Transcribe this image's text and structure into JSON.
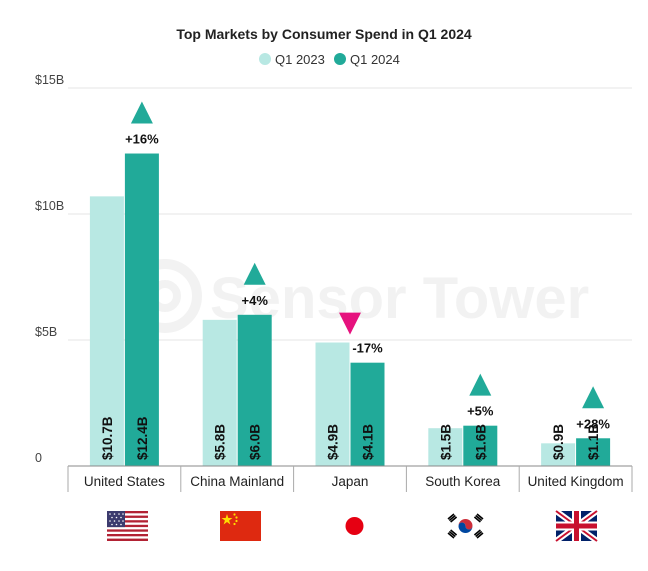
{
  "chart_data": {
    "type": "bar",
    "title": "Top Markets by Consumer Spend in Q1 2024",
    "watermark": "Sensor Tower",
    "categories": [
      "United States",
      "China Mainland",
      "Japan",
      "South Korea",
      "United Kingdom"
    ],
    "flags": [
      "us-flag-icon",
      "cn-flag-icon",
      "jp-flag-icon",
      "kr-flag-icon",
      "gb-flag-icon"
    ],
    "series": [
      {
        "name": "Q1 2023",
        "color": "#b8e8e3",
        "values": [
          10.7,
          5.8,
          4.9,
          1.5,
          0.9
        ],
        "labels": [
          "$10.7B",
          "$5.8B",
          "$4.9B",
          "$1.5B",
          "$0.9B"
        ]
      },
      {
        "name": "Q1 2024",
        "color": "#21aa99",
        "values": [
          12.4,
          6.0,
          4.1,
          1.6,
          1.1
        ],
        "labels": [
          "$12.4B",
          "$6.0B",
          "$4.1B",
          "$1.6B",
          "$1.1B"
        ]
      }
    ],
    "changes": [
      {
        "text": "+16%",
        "direction": "up"
      },
      {
        "text": "+4%",
        "direction": "up"
      },
      {
        "text": "-17%",
        "direction": "down"
      },
      {
        "text": "+5%",
        "direction": "up"
      },
      {
        "text": "+28%",
        "direction": "up"
      }
    ],
    "up_color": "#21aa99",
    "down_color": "#e6127e",
    "ylim": [
      0,
      15
    ],
    "yticks": [
      0,
      5,
      10,
      15
    ],
    "ytick_labels": [
      "0",
      "$5B",
      "$10B",
      "$15B"
    ],
    "legend_position": "top-center"
  }
}
